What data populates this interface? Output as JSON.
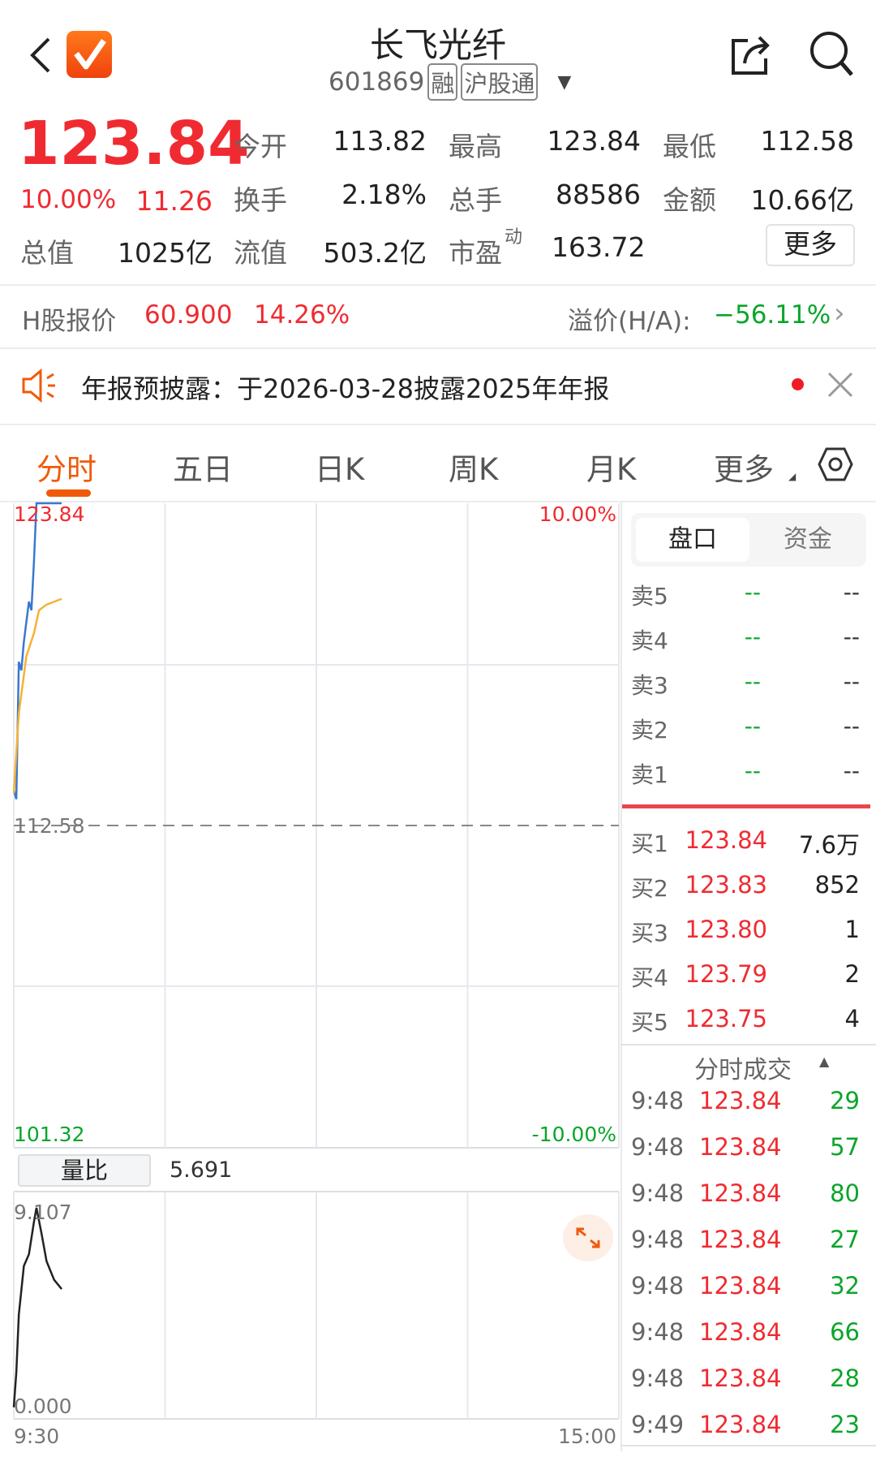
{
  "header": {
    "title": "长飞光纤",
    "code": "601869",
    "badges": [
      "融",
      "沪股通"
    ]
  },
  "quote": {
    "price": "123.84",
    "change_pct": "10.00%",
    "change": "11.26",
    "stats": [
      [
        {
          "label": "今开",
          "value": "113.82",
          "color": "red"
        },
        {
          "label": "最高",
          "value": "123.84",
          "color": "red"
        },
        {
          "label": "最低",
          "value": "112.58",
          "color": "black"
        }
      ],
      [
        {
          "label": "换手",
          "value": "2.18%",
          "color": "black"
        },
        {
          "label": "总手",
          "value": "88586",
          "color": "black"
        },
        {
          "label": "金额",
          "value": "10.66亿",
          "color": "black"
        }
      ]
    ],
    "total_value_label": "总值",
    "total_value": "1025亿",
    "float_label": "流值",
    "float_value": "503.2亿",
    "pe_label": "市盈",
    "pe_sup": "动",
    "pe_value": "163.72",
    "more_button": "更多"
  },
  "hshare": {
    "label": "H股报价",
    "price": "60.900",
    "pct": "14.26%",
    "premium_label": "溢价(H/A):",
    "premium": "−56.11%"
  },
  "notice": {
    "text": "年报预披露：于2026-03-28披露2025年年报"
  },
  "tabs": [
    {
      "label": "分时",
      "active": true
    },
    {
      "label": "五日"
    },
    {
      "label": "日K"
    },
    {
      "label": "周K"
    },
    {
      "label": "月K"
    },
    {
      "label": "更多"
    }
  ],
  "chart_data": [
    {
      "type": "line",
      "title": "",
      "y_left_ticks": [
        "123.84",
        "112.58",
        "101.32"
      ],
      "y_right_ticks": [
        "10.00%",
        "-10.00%"
      ],
      "ylim": [
        101.32,
        123.84
      ],
      "reference": 112.58,
      "x_ticks": [
        "9:30",
        "15:00"
      ],
      "xlim_minutes_from_open": [
        0,
        240
      ],
      "series": [
        {
          "color": "#3a78d0",
          "points": [
            [
              0,
              113.82
            ],
            [
              1,
              113.5
            ],
            [
              2,
              118.3
            ],
            [
              3,
              118.0
            ],
            [
              4,
              119.0
            ],
            [
              6,
              120.4
            ],
            [
              7,
              120.1
            ],
            [
              8,
              121.8
            ],
            [
              9,
              123.84
            ],
            [
              19,
              123.84
            ]
          ]
        },
        {
          "color": "#f7b134",
          "points": [
            [
              0,
              113.7
            ],
            [
              2,
              116.5
            ],
            [
              5,
              118.5
            ],
            [
              8,
              119.3
            ],
            [
              10,
              120.1
            ],
            [
              13,
              120.3
            ],
            [
              19,
              120.5
            ]
          ]
        }
      ]
    },
    {
      "type": "line",
      "title": "",
      "indicator_label": "量比",
      "indicator_value": "5.691",
      "y_ticks": [
        "9.107",
        "0.000"
      ],
      "ylim": [
        0,
        9.107
      ],
      "xlim_minutes_from_open": [
        0,
        240
      ],
      "series": [
        {
          "color": "#222222",
          "points": [
            [
              0,
              0.5
            ],
            [
              1,
              2.0
            ],
            [
              2,
              4.5
            ],
            [
              4,
              6.6
            ],
            [
              6,
              7.1
            ],
            [
              8,
              8.5
            ],
            [
              9,
              9.107
            ],
            [
              11,
              8.0
            ],
            [
              13,
              6.8
            ],
            [
              16,
              6.0
            ],
            [
              19,
              5.6
            ]
          ]
        }
      ]
    }
  ],
  "orderbook": {
    "tabs": [
      "盘口",
      "资金"
    ],
    "asks": [
      {
        "label": "卖5",
        "price": "--",
        "vol": "--"
      },
      {
        "label": "卖4",
        "price": "--",
        "vol": "--"
      },
      {
        "label": "卖3",
        "price": "--",
        "vol": "--"
      },
      {
        "label": "卖2",
        "price": "--",
        "vol": "--"
      },
      {
        "label": "卖1",
        "price": "--",
        "vol": "--"
      }
    ],
    "bids": [
      {
        "label": "买1",
        "price": "123.84",
        "vol": "7.6万"
      },
      {
        "label": "买2",
        "price": "123.83",
        "vol": "852"
      },
      {
        "label": "买3",
        "price": "123.80",
        "vol": "1"
      },
      {
        "label": "买4",
        "price": "123.79",
        "vol": "2"
      },
      {
        "label": "买5",
        "price": "123.75",
        "vol": "4"
      }
    ]
  },
  "trades": {
    "title": "分时成交",
    "rows": [
      {
        "time": "9:48",
        "price": "123.84",
        "vol": "29"
      },
      {
        "time": "9:48",
        "price": "123.84",
        "vol": "57"
      },
      {
        "time": "9:48",
        "price": "123.84",
        "vol": "80"
      },
      {
        "time": "9:48",
        "price": "123.84",
        "vol": "27"
      },
      {
        "time": "9:48",
        "price": "123.84",
        "vol": "32"
      },
      {
        "time": "9:48",
        "price": "123.84",
        "vol": "66"
      },
      {
        "time": "9:48",
        "price": "123.84",
        "vol": "28"
      },
      {
        "time": "9:49",
        "price": "123.84",
        "vol": "23"
      }
    ]
  },
  "colors": {
    "up": "#ef2b31",
    "down": "#0aa52a",
    "accent": "#f05a0a"
  }
}
